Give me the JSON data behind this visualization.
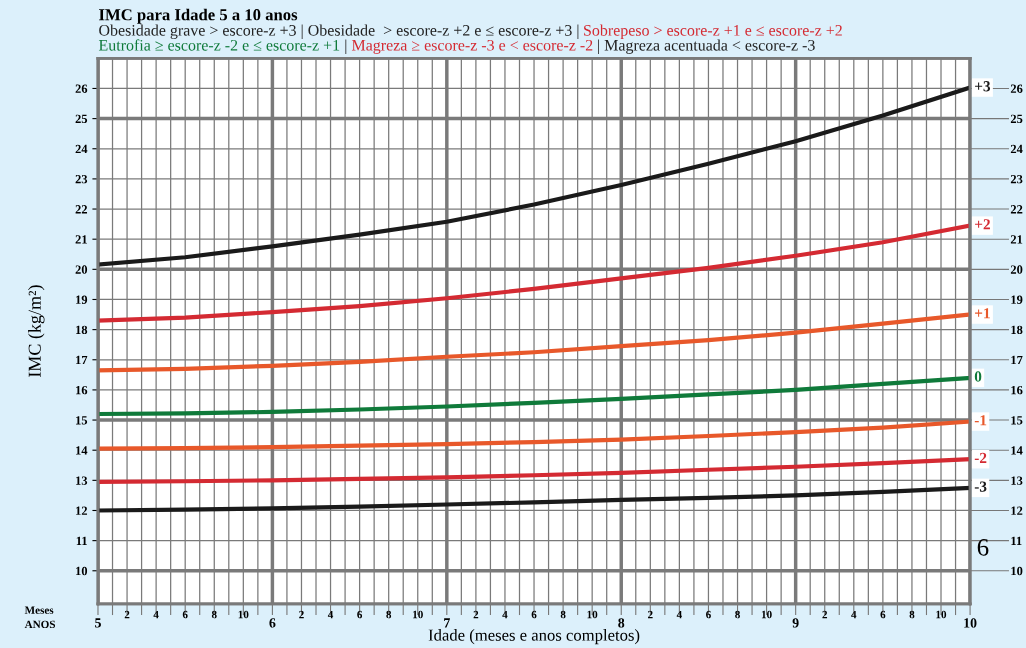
{
  "chart_data": {
    "type": "line",
    "title": "IMC para Idade 5 a 10 anos",
    "xlabel": "Idade (meses e anos completos)",
    "ylabel": "IMC (kg/m²)",
    "x": [
      5,
      5.5,
      6,
      6.5,
      7,
      7.5,
      8,
      8.5,
      9,
      9.5,
      10
    ],
    "series": [
      {
        "name": "+3",
        "color": "#1a1a1a",
        "values": [
          20.16,
          20.4,
          20.76,
          21.15,
          21.58,
          22.15,
          22.8,
          23.5,
          24.25,
          25.1,
          26.03
        ]
      },
      {
        "name": "+2",
        "color": "#d42a32",
        "values": [
          18.3,
          18.4,
          18.58,
          18.78,
          19.04,
          19.35,
          19.7,
          20.05,
          20.45,
          20.9,
          21.45
        ]
      },
      {
        "name": "+1",
        "color": "#e8582a",
        "values": [
          16.65,
          16.7,
          16.8,
          16.93,
          17.1,
          17.25,
          17.45,
          17.65,
          17.9,
          18.2,
          18.5
        ]
      },
      {
        "name": "0",
        "color": "#0f7a3a",
        "values": [
          15.2,
          15.22,
          15.27,
          15.35,
          15.45,
          15.57,
          15.7,
          15.85,
          16.0,
          16.2,
          16.4
        ]
      },
      {
        "name": "-1",
        "color": "#e8582a",
        "values": [
          14.05,
          14.07,
          14.1,
          14.15,
          14.2,
          14.27,
          14.35,
          14.47,
          14.6,
          14.75,
          14.95
        ]
      },
      {
        "name": "-2",
        "color": "#d42a32",
        "values": [
          12.95,
          12.97,
          13.0,
          13.05,
          13.1,
          13.17,
          13.25,
          13.35,
          13.45,
          13.57,
          13.7
        ]
      },
      {
        "name": "-3",
        "color": "#1a1a1a",
        "values": [
          12.0,
          12.03,
          12.07,
          12.13,
          12.2,
          12.27,
          12.35,
          12.42,
          12.5,
          12.62,
          12.75
        ]
      }
    ],
    "xlim": [
      5,
      10
    ],
    "ylim": [
      8.9,
      27
    ],
    "y2lim": [
      8.9,
      27
    ],
    "xticks": [
      5,
      {
        "value": 5.0833,
        "label": null
      },
      {
        "value": 5.1667,
        "label": null
      },
      {
        "value": 5.25,
        "label": null
      },
      {
        "value": 5.3333,
        "label": null
      },
      {
        "value": 5.4167,
        "label": null
      },
      {
        "value": 5.5,
        "label": null
      },
      {
        "value": 5.5833,
        "label": null
      },
      {
        "value": 5.6667,
        "label": null
      },
      {
        "value": 5.75,
        "label": null
      },
      {
        "value": 5.8333,
        "label": null
      },
      {
        "value": 5.9167,
        "label": null
      },
      6,
      {
        "value": 6.0833,
        "label": null
      },
      {
        "value": 6.1667,
        "label": null
      },
      {
        "value": 6.25,
        "label": null
      },
      {
        "value": 6.3333,
        "label": null
      },
      {
        "value": 6.4167,
        "label": null
      },
      {
        "value": 6.5,
        "label": null
      },
      {
        "value": 6.5833,
        "label": null
      },
      {
        "value": 6.6667,
        "label": null
      },
      {
        "value": 6.75,
        "label": null
      },
      {
        "value": 6.8333,
        "label": null
      },
      {
        "value": 6.9167,
        "label": null
      },
      7,
      {
        "value": 7.0833,
        "label": null
      },
      {
        "value": 7.1667,
        "label": null
      },
      {
        "value": 7.25,
        "label": null
      },
      {
        "value": 7.3333,
        "label": null
      },
      {
        "value": 7.4167,
        "label": null
      },
      {
        "value": 7.5,
        "label": null
      },
      {
        "value": 7.5833,
        "label": null
      },
      {
        "value": 7.6667,
        "label": null
      },
      {
        "value": 7.75,
        "label": null
      },
      {
        "value": 7.8333,
        "label": null
      },
      {
        "value": 7.9167,
        "label": null
      },
      8,
      {
        "value": 8.0833,
        "label": null
      },
      {
        "value": 8.1667,
        "label": null
      },
      {
        "value": 8.25,
        "label": null
      },
      {
        "value": 8.3333,
        "label": null
      },
      {
        "value": 8.4167,
        "label": null
      },
      {
        "value": 8.5,
        "label": null
      },
      {
        "value": 8.5833,
        "label": null
      },
      {
        "value": 8.6667,
        "label": null
      },
      {
        "value": 8.75,
        "label": null
      },
      {
        "value": 8.8333,
        "label": null
      },
      {
        "value": 8.9167,
        "label": null
      },
      9,
      {
        "value": 9.0833,
        "label": null
      },
      {
        "value": 9.1667,
        "label": null
      },
      {
        "value": 9.25,
        "label": null
      },
      {
        "value": 9.3333,
        "label": null
      },
      {
        "value": 9.4167,
        "label": null
      },
      {
        "value": 9.5,
        "label": null
      },
      {
        "value": 9.5833,
        "label": null
      },
      {
        "value": 9.6667,
        "label": null
      },
      {
        "value": 9.75,
        "label": null
      },
      {
        "value": 9.8333,
        "label": null
      },
      {
        "value": 9.9167,
        "label": null
      },
      10
    ],
    "yticks": [
      10,
      11,
      12,
      13,
      14,
      15,
      16,
      17,
      18,
      19,
      20,
      21,
      22,
      23,
      24,
      25,
      26
    ],
    "y2ticks": [
      10,
      11,
      12,
      13,
      14,
      15,
      16,
      17,
      18,
      19,
      20,
      21,
      22,
      23,
      24,
      25,
      26
    ],
    "grid": true,
    "marker": "none",
    "line_style": "solid",
    "annotations": [
      "Obesidade grave > escore-z +3 | Obesidade  > escore-z +2 e ≤ escore-z +3 | ",
      "Sobrepeso > escore-z +1 e ≤ escore-z +2",
      "Eutrofia ≥ escore-z -2 e ≤ escore-z +1",
      " | ",
      "Magreza ≥ escore-z -3 e < escore-z -2",
      " | Magreza acentuada < escore-z -3",
      "Meses",
      "ANOS",
      "6",
      "2",
      "4",
      "6",
      "8",
      "10",
      "2",
      "4",
      "6",
      "8",
      "10",
      "2",
      "4",
      "6",
      "8",
      "10",
      "2",
      "4",
      "6",
      "8",
      "10",
      "2",
      "4",
      "6",
      "8",
      "10"
    ]
  }
}
